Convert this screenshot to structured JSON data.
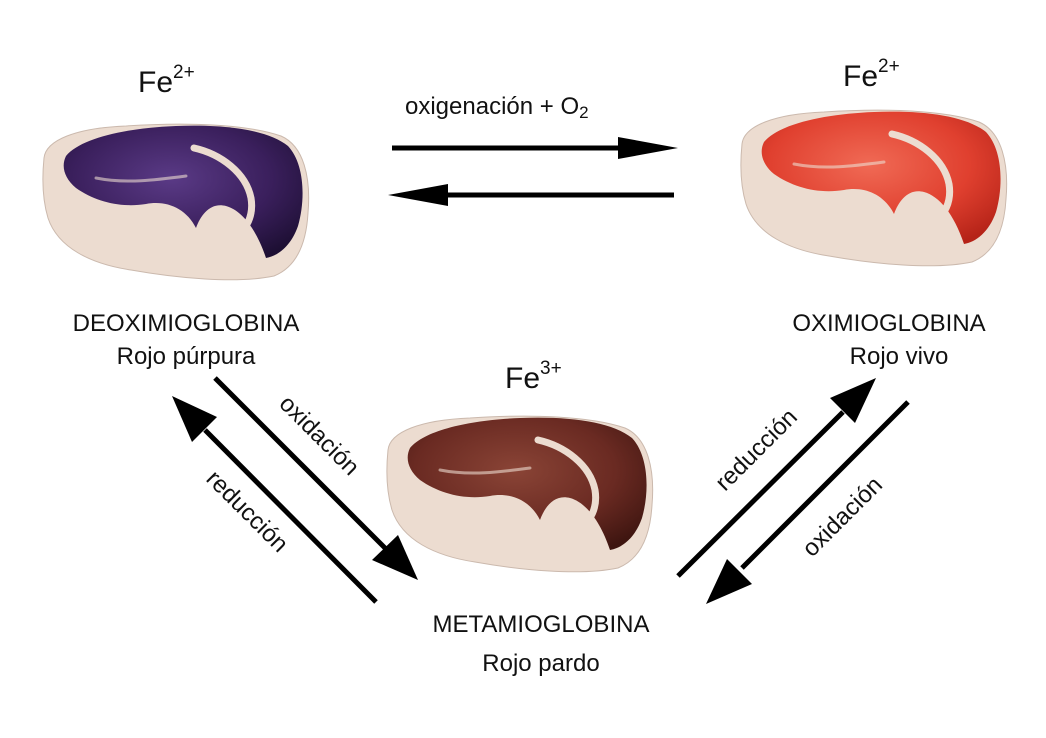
{
  "states": {
    "deoxy": {
      "ion": "Fe",
      "charge": "2+",
      "name": "DEOXIMIOGLOBINA",
      "color_name": "Rojo púrpura",
      "meat_color": "#3a1f5c",
      "meat_color_dark": "#1d0f33",
      "meat_color_light": "#5a3a86"
    },
    "oxy": {
      "ion": "Fe",
      "charge": "2+",
      "name": "OXIMIOGLOBINA",
      "color_name": "Rojo vivo",
      "meat_color": "#e0402f",
      "meat_color_dark": "#b52318",
      "meat_color_light": "#f06a55"
    },
    "met": {
      "ion": "Fe",
      "charge": "3+",
      "name": "METAMIOGLOBINA",
      "color_name": "Rojo pardo",
      "meat_color": "#6a2a22",
      "meat_color_dark": "#3e1510",
      "meat_color_light": "#8a4436"
    }
  },
  "reactions": {
    "oxygenation": {
      "label": "oxigenación + O",
      "subscript": "2"
    },
    "deoxy_to_met": "oxidación",
    "met_to_deoxy": "reducción",
    "met_to_oxy": "reducción",
    "oxy_to_met": "oxidación"
  },
  "fat_color": "#ecdcd0"
}
